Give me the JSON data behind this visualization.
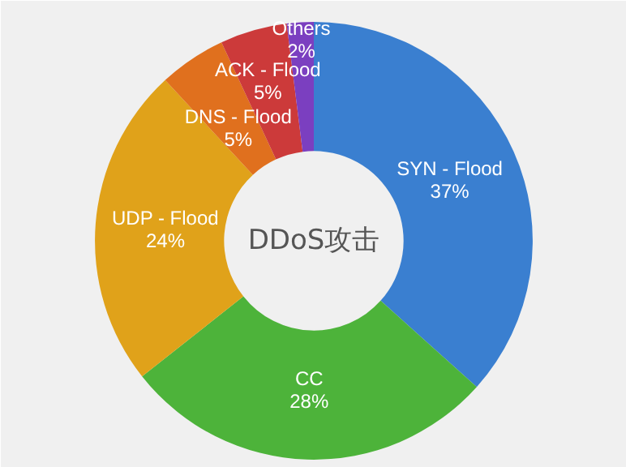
{
  "chart_data": {
    "type": "donut",
    "categories": [
      "SYN - Flood",
      "CC",
      "UDP - Flood",
      "DNS - Flood",
      "ACK - Flood",
      "Others"
    ],
    "values": [
      37,
      28,
      24,
      5,
      5,
      2
    ],
    "value_labels": [
      "37%",
      "28%",
      "24%",
      "5%",
      "5%",
      "2%"
    ],
    "colors": [
      "#3a7fd0",
      "#4db33a",
      "#e0a21a",
      "#e0701e",
      "#cc3a3a",
      "#7b3fc0"
    ],
    "annotations": [
      "DDoS攻击"
    ]
  }
}
